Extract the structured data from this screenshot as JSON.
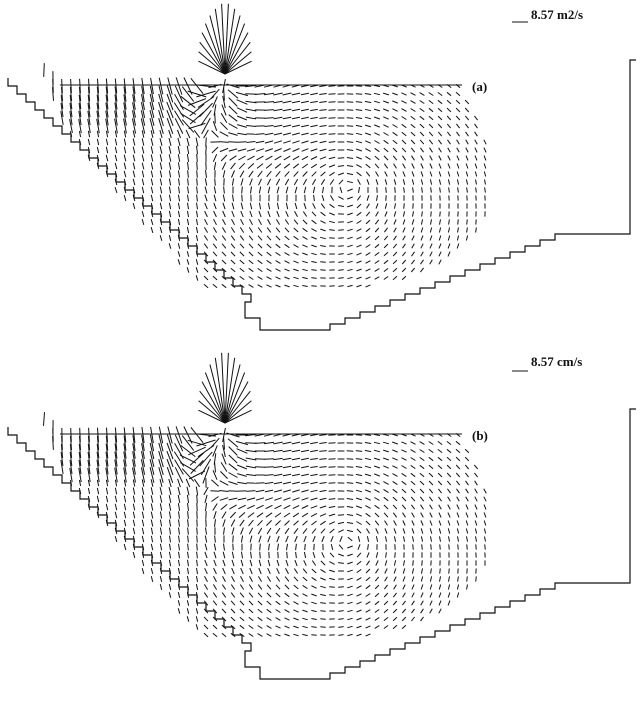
{
  "panels": [
    {
      "scale_label": "8.57 m2/s",
      "label": "(a)"
    },
    {
      "scale_label": "8.57 cm/s",
      "label": "(b)"
    }
  ]
}
